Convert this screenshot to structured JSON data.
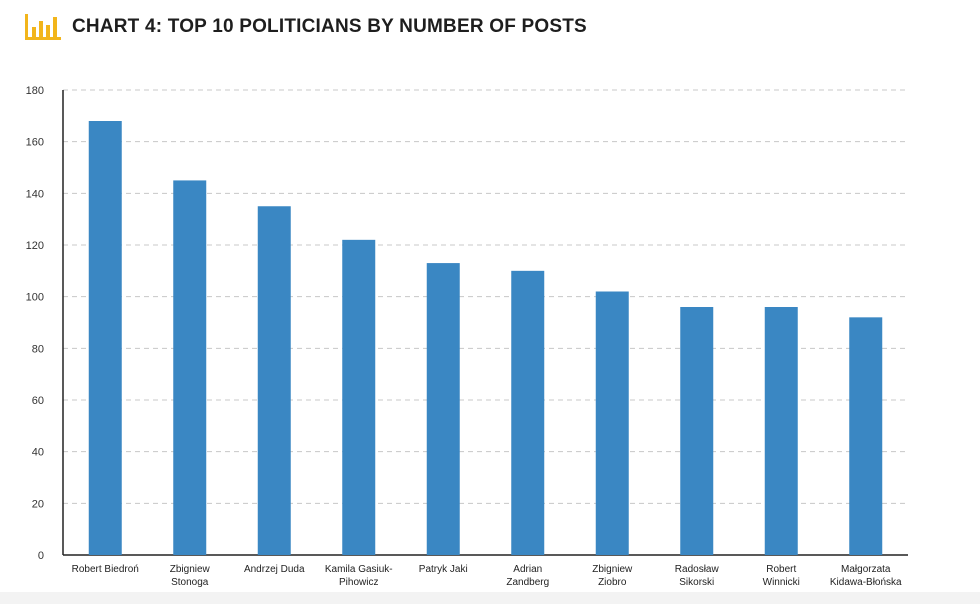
{
  "header": {
    "title": "CHART 4: TOP 10 POLITICIANS BY NUMBER OF POSTS",
    "icon": "bar-chart-icon",
    "accent": "#f2b51b"
  },
  "chart_data": {
    "type": "bar",
    "title": "CHART 4: TOP 10 POLITICIANS BY NUMBER OF POSTS",
    "xlabel": "",
    "ylabel": "",
    "ylim": [
      0,
      180
    ],
    "yticks": [
      0,
      20,
      40,
      60,
      80,
      100,
      120,
      140,
      160,
      180
    ],
    "grid": true,
    "legend": "none",
    "bar_color": "#3a87c3",
    "categories": [
      [
        "Robert Biedroń"
      ],
      [
        "Zbigniew",
        "Stonoga"
      ],
      [
        "Andrzej Duda"
      ],
      [
        "Kamila Gasiuk-",
        "Pihowicz"
      ],
      [
        "Patryk Jaki"
      ],
      [
        "Adrian",
        "Zandberg"
      ],
      [
        "Zbigniew",
        "Ziobro"
      ],
      [
        "Radosław",
        "Sikorski"
      ],
      [
        "Robert",
        "Winnicki"
      ],
      [
        "Małgorzata",
        "Kidawa-Błońska"
      ]
    ],
    "values": [
      168,
      145,
      135,
      122,
      113,
      110,
      102,
      96,
      96,
      92
    ]
  }
}
